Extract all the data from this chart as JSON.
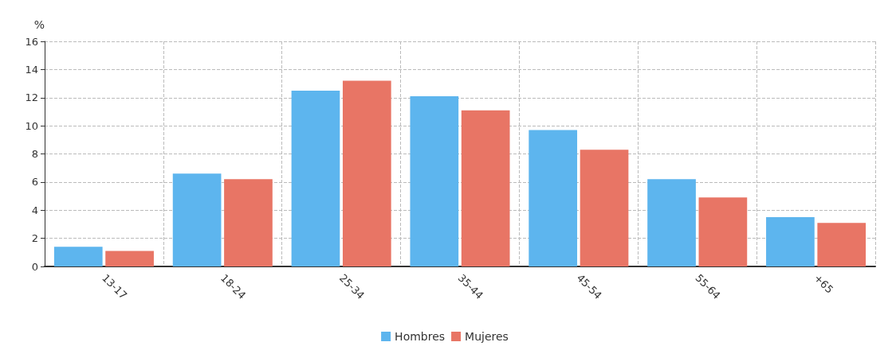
{
  "chart_data": {
    "type": "bar",
    "ylabel": "%",
    "categories": [
      "13-17",
      "18-24",
      "25-34",
      "35-44",
      "45-54",
      "55-64",
      "+65"
    ],
    "series": [
      {
        "name": "Hombres",
        "color": "#5db5ee",
        "values": [
          1.4,
          6.6,
          12.5,
          12.1,
          9.7,
          6.2,
          3.5
        ]
      },
      {
        "name": "Mujeres",
        "color": "#e87565",
        "values": [
          1.1,
          6.2,
          13.2,
          11.1,
          8.3,
          4.9,
          3.1
        ]
      }
    ],
    "ylim": [
      0,
      16
    ],
    "yticks": [
      0,
      2,
      4,
      6,
      8,
      10,
      12,
      14,
      16
    ],
    "grid": true,
    "legend": "bottom"
  }
}
